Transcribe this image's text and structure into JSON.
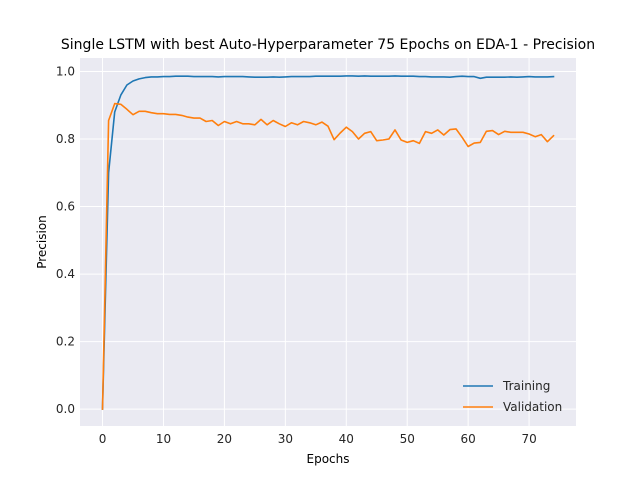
{
  "chart_data": {
    "type": "line",
    "title": "Single LSTM with best Auto-Hyperparameter 75 Epochs on EDA-1 - Precision",
    "xlabel": "Epochs",
    "ylabel": "Precision",
    "xlim": [
      -3.7,
      77.7
    ],
    "ylim": [
      -0.05,
      1.04
    ],
    "xticks": [
      0,
      10,
      20,
      30,
      40,
      50,
      60,
      70
    ],
    "yticks": [
      0.0,
      0.2,
      0.4,
      0.6,
      0.8,
      1.0
    ],
    "xtick_labels": [
      "0",
      "10",
      "20",
      "30",
      "40",
      "50",
      "60",
      "70"
    ],
    "ytick_labels": [
      "0.0",
      "0.2",
      "0.4",
      "0.6",
      "0.8",
      "1.0"
    ],
    "grid": true,
    "legend_position": "lower-right",
    "plot_background": "#eaeaf2",
    "x": [
      0,
      1,
      2,
      3,
      4,
      5,
      6,
      7,
      8,
      9,
      10,
      11,
      12,
      13,
      14,
      15,
      16,
      17,
      18,
      19,
      20,
      21,
      22,
      23,
      24,
      25,
      26,
      27,
      28,
      29,
      30,
      31,
      32,
      33,
      34,
      35,
      36,
      37,
      38,
      39,
      40,
      41,
      42,
      43,
      44,
      45,
      46,
      47,
      48,
      49,
      50,
      51,
      52,
      53,
      54,
      55,
      56,
      57,
      58,
      59,
      60,
      61,
      62,
      63,
      64,
      65,
      66,
      67,
      68,
      69,
      70,
      71,
      72,
      73,
      74
    ],
    "series": [
      {
        "name": "Training",
        "color": "#1f77b4",
        "values": [
          0.0,
          0.7,
          0.88,
          0.93,
          0.96,
          0.972,
          0.978,
          0.982,
          0.984,
          0.984,
          0.985,
          0.985,
          0.986,
          0.986,
          0.986,
          0.985,
          0.985,
          0.985,
          0.985,
          0.984,
          0.985,
          0.985,
          0.985,
          0.985,
          0.984,
          0.983,
          0.983,
          0.983,
          0.984,
          0.983,
          0.984,
          0.985,
          0.985,
          0.985,
          0.985,
          0.986,
          0.986,
          0.986,
          0.986,
          0.986,
          0.987,
          0.987,
          0.986,
          0.987,
          0.986,
          0.986,
          0.986,
          0.986,
          0.987,
          0.986,
          0.986,
          0.986,
          0.985,
          0.985,
          0.984,
          0.984,
          0.984,
          0.983,
          0.985,
          0.986,
          0.985,
          0.985,
          0.98,
          0.983,
          0.983,
          0.983,
          0.983,
          0.984,
          0.983,
          0.984,
          0.985,
          0.984,
          0.984,
          0.984,
          0.985
        ]
      },
      {
        "name": "Validation",
        "color": "#ff7f0e",
        "values": [
          0.0,
          0.855,
          0.905,
          0.903,
          0.888,
          0.872,
          0.882,
          0.882,
          0.878,
          0.875,
          0.875,
          0.873,
          0.873,
          0.87,
          0.865,
          0.862,
          0.862,
          0.852,
          0.855,
          0.84,
          0.852,
          0.845,
          0.852,
          0.845,
          0.845,
          0.842,
          0.858,
          0.842,
          0.855,
          0.845,
          0.837,
          0.848,
          0.842,
          0.852,
          0.848,
          0.842,
          0.85,
          0.838,
          0.798,
          0.818,
          0.835,
          0.822,
          0.8,
          0.817,
          0.822,
          0.795,
          0.797,
          0.8,
          0.827,
          0.797,
          0.79,
          0.795,
          0.787,
          0.822,
          0.817,
          0.827,
          0.812,
          0.828,
          0.83,
          0.805,
          0.778,
          0.788,
          0.79,
          0.823,
          0.825,
          0.813,
          0.823,
          0.82,
          0.82,
          0.82,
          0.815,
          0.807,
          0.813,
          0.792,
          0.81
        ]
      }
    ]
  }
}
